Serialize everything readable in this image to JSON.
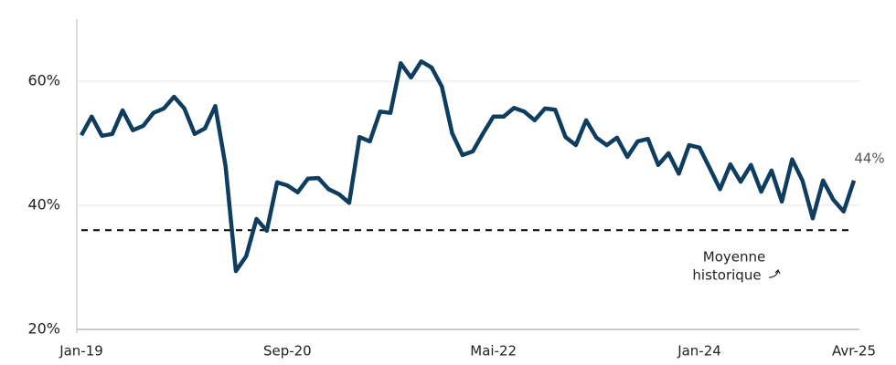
{
  "chart_data": {
    "type": "line",
    "categories": [
      "Jan-19",
      null,
      null,
      null,
      null,
      null,
      null,
      null,
      null,
      null,
      null,
      null,
      null,
      null,
      null,
      null,
      null,
      null,
      null,
      null,
      "Sep-20",
      null,
      null,
      null,
      null,
      null,
      null,
      null,
      null,
      null,
      null,
      null,
      null,
      null,
      null,
      null,
      null,
      null,
      null,
      null,
      "Mai-22",
      null,
      null,
      null,
      null,
      null,
      null,
      null,
      null,
      null,
      null,
      null,
      null,
      null,
      null,
      null,
      null,
      null,
      null,
      null,
      "Jan-24",
      null,
      null,
      null,
      null,
      null,
      null,
      null,
      null,
      null,
      null,
      null,
      null,
      null,
      null,
      "Avr-25"
    ],
    "series": [
      {
        "name": null,
        "color": "#0f3d5f",
        "values": [
          51.3,
          54.3,
          51.2,
          51.5,
          55.3,
          52.1,
          52.8,
          54.9,
          55.6,
          57.5,
          55.6,
          51.5,
          52.4,
          56.0,
          46.3,
          29.4,
          31.8,
          37.8,
          35.9,
          43.7,
          43.2,
          42.1,
          44.3,
          44.4,
          42.6,
          41.8,
          40.4,
          51.0,
          50.3,
          55.1,
          54.9,
          62.9,
          60.6,
          63.2,
          62.2,
          59.1,
          51.6,
          48.1,
          48.7,
          51.6,
          54.3,
          54.3,
          55.7,
          55.1,
          53.7,
          55.6,
          55.4,
          51.0,
          49.7,
          53.7,
          50.9,
          49.7,
          50.9,
          47.8,
          50.3,
          50.7,
          46.5,
          48.4,
          45.1,
          49.7,
          49.3,
          46.0,
          42.6,
          46.6,
          43.8,
          46.5,
          42.2,
          45.6,
          40.6,
          47.4,
          44.0,
          37.9,
          44.0,
          40.9,
          39.0,
          44
        ],
        "value_labels": [
          null,
          null,
          null,
          null,
          null,
          null,
          null,
          null,
          null,
          null,
          null,
          null,
          null,
          null,
          null,
          null,
          null,
          null,
          null,
          null,
          null,
          null,
          null,
          null,
          null,
          null,
          null,
          null,
          null,
          null,
          null,
          null,
          null,
          null,
          null,
          null,
          null,
          null,
          null,
          null,
          null,
          null,
          null,
          null,
          null,
          null,
          null,
          null,
          null,
          null,
          null,
          null,
          null,
          null,
          null,
          null,
          null,
          null,
          null,
          null,
          null,
          null,
          null,
          null,
          null,
          null,
          null,
          null,
          null,
          null,
          null,
          null,
          null,
          null,
          null,
          "44%"
        ]
      }
    ],
    "reference_line": {
      "value": 36,
      "label": [
        "Moyenne",
        "historique"
      ],
      "color": "#000000"
    },
    "ylim": [
      20,
      70
    ],
    "yticks": [
      {
        "value": 20,
        "label": "20%"
      },
      {
        "value": 40,
        "label": "40%"
      },
      {
        "value": 60,
        "label": "60%"
      }
    ],
    "grid": true
  }
}
